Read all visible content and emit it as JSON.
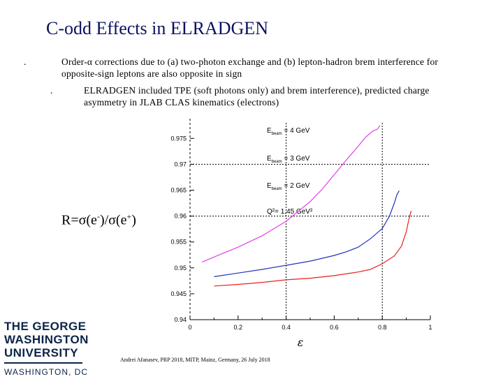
{
  "slide": {
    "title": "C-odd Effects in ELRADGEN",
    "bullet_mark": ".",
    "bullet1": "Order-α corrections due to (a) two-photon exchange and (b) lepton-hadron brem interference for opposite-sign leptons are also opposite in sign",
    "bullet2": "ELRADGEN included TPE (soft photons only) and brem interference), predicted charge asymmetry in JLAB CLAS kinematics (electrons)",
    "ratio_label": {
      "r": "R=σ(e",
      "minus": "-",
      "mid": ")/σ(e",
      "plus": "+",
      "end": ")"
    },
    "footer": "Andrei Afanasev, PRP 2018, MITP, Mainz, Germany, 26 July 2018",
    "logo": {
      "line1": "THE GEORGE",
      "line2": "WASHINGTON",
      "line3": "UNIVERSITY",
      "line4": "WASHINGTON, DC"
    }
  },
  "chart_data": {
    "type": "line",
    "xlabel": "ε",
    "ylabel": "",
    "xlim": [
      0,
      1
    ],
    "ylim": [
      0.94,
      0.978
    ],
    "xticks": [
      "0",
      "0.2",
      "0.4",
      "0.6",
      "0.8",
      "1"
    ],
    "yticks": [
      "0.94",
      "0.945",
      "0.95",
      "0.955",
      "0.96",
      "0.965",
      "0.97",
      "0.975"
    ],
    "grid_lines": {
      "x": [
        0.4,
        0.8
      ],
      "y": [
        0.96,
        0.97
      ]
    },
    "annotations": [
      {
        "text": "E_beam = 4 GeV"
      },
      {
        "text": "E_beam = 3 GeV"
      },
      {
        "text": "E_beam = 2 GeV"
      },
      {
        "text": "Q²= 1.45 GeV²"
      }
    ],
    "series": [
      {
        "color": "#e040e8",
        "x": [
          0.05,
          0.1,
          0.2,
          0.3,
          0.4,
          0.5,
          0.55,
          0.6,
          0.65,
          0.7,
          0.73,
          0.76,
          0.78,
          0.79
        ],
        "y": [
          0.9511,
          0.9521,
          0.954,
          0.9562,
          0.959,
          0.9628,
          0.9652,
          0.968,
          0.9708,
          0.9735,
          0.9752,
          0.9764,
          0.9768,
          0.9775
        ]
      },
      {
        "color": "#2233bb",
        "x": [
          0.1,
          0.2,
          0.3,
          0.4,
          0.5,
          0.6,
          0.65,
          0.7,
          0.75,
          0.8,
          0.83,
          0.85,
          0.86,
          0.87
        ],
        "y": [
          0.9483,
          0.949,
          0.9497,
          0.9505,
          0.9513,
          0.9524,
          0.9531,
          0.954,
          0.9556,
          0.9576,
          0.96,
          0.9625,
          0.964,
          0.9649
        ]
      },
      {
        "color": "#e82020",
        "x": [
          0.1,
          0.2,
          0.3,
          0.4,
          0.5,
          0.6,
          0.7,
          0.75,
          0.8,
          0.85,
          0.88,
          0.9,
          0.91,
          0.92
        ],
        "y": [
          0.9465,
          0.9468,
          0.9472,
          0.9477,
          0.948,
          0.9485,
          0.9492,
          0.9497,
          0.9508,
          0.9523,
          0.9542,
          0.957,
          0.9592,
          0.961
        ]
      }
    ]
  }
}
